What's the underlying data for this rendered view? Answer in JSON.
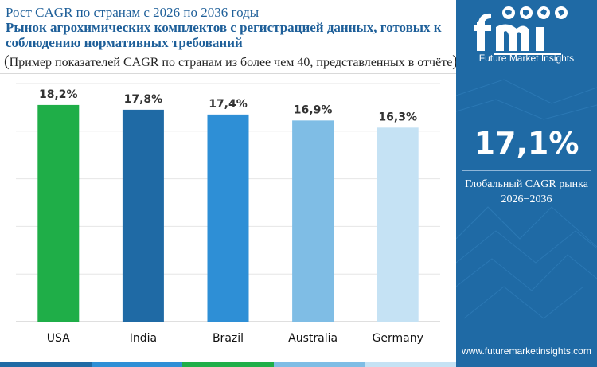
{
  "header": {
    "title_line1": "Рост CAGR по странам с 2026 по 2036 годы",
    "title_main": "Рынок агрохимических комплектов с регистрацией данных, готовых к соблюдению нормативных требований",
    "subtitle_open": "(",
    "subtitle_text": "Пример показателей CAGR по странам из более чем 40, представленных в отчёте",
    "subtitle_close": ")"
  },
  "chart_data": {
    "type": "bar",
    "categories": [
      "USA",
      "India",
      "Brazil",
      "Australia",
      "Germany"
    ],
    "values": [
      18.2,
      17.8,
      17.4,
      16.9,
      16.3
    ],
    "data_labels": [
      "18,2%",
      "17,8%",
      "17,4%",
      "16,9%",
      "16,3%"
    ],
    "bar_colors": [
      "#1fae48",
      "#1f6aa5",
      "#2e8fd6",
      "#7fbde5",
      "#c5e2f4"
    ],
    "ylim": [
      0,
      20
    ],
    "grid": true,
    "legend": "none",
    "title": "",
    "xlabel": "",
    "ylabel": ""
  },
  "side_panel": {
    "background_color": "#1f6aa5",
    "logo_text": "fmi",
    "logo_subtitle": "Future Market Insights",
    "global_cagr": "17,1%",
    "global_label_line1": "Глобальный CAGR рынка",
    "global_label_line2": "2026−2036",
    "website": "www.futuremarketinsights.com"
  },
  "bottom_strip_colors": [
    "#1f6aa5",
    "#2e8fd6",
    "#1fae48",
    "#7fbde5",
    "#c5e2f4"
  ]
}
